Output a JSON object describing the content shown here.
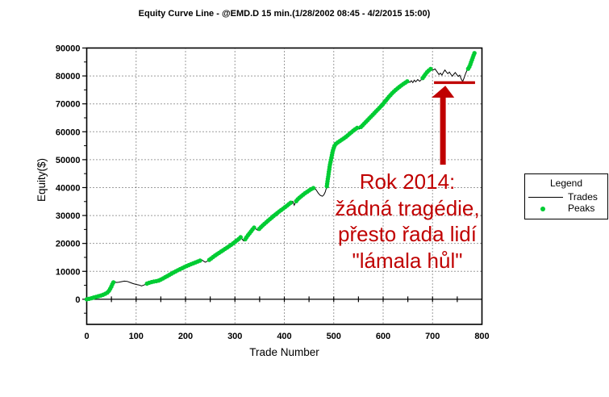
{
  "title": "Equity Curve Line - @EMD.D 15 min.(1/28/2002 08:45 - 4/2/2015 15:00)",
  "colors": {
    "peaks_green": "#00CC33",
    "trades_black": "#000000",
    "annotation_red": "#C00000",
    "grid_dot": "#3a3a3a",
    "background": "#FFFFFF"
  },
  "axes": {
    "x_title": "Trade Number",
    "y_title": "Equity($)"
  },
  "legend": {
    "title": "Legend",
    "items": [
      {
        "label": "Trades",
        "type": "line",
        "color": "#000000"
      },
      {
        "label": "Peaks",
        "type": "dot",
        "color": "#00CC33"
      }
    ]
  },
  "annotation": {
    "lines": [
      "Rok 2014:",
      "žádná tragédie,",
      "přesto řada lidí",
      "\"lámala hůl\""
    ],
    "color": "#C00000"
  },
  "chart_data": {
    "type": "line",
    "title": "Equity Curve Line - @EMD.D 15 min.(1/28/2002 08:45 - 4/2/2015 15:00)",
    "xlabel": "Trade Number",
    "ylabel": "Equity($)",
    "xlim": [
      0,
      800
    ],
    "ylim": [
      -9000,
      90000
    ],
    "x_ticks": [
      0,
      100,
      200,
      300,
      400,
      500,
      600,
      700,
      800
    ],
    "y_ticks": [
      0,
      10000,
      20000,
      30000,
      40000,
      50000,
      60000,
      70000,
      80000,
      90000
    ],
    "x_minor_step": 50,
    "y_minor_step": 5000,
    "grid": "dotted",
    "legend_position": "right",
    "series": [
      {
        "name": "Trades",
        "color": "#000000",
        "style": "line",
        "points": [
          [
            0,
            0
          ],
          [
            6,
            200
          ],
          [
            12,
            500
          ],
          [
            18,
            800
          ],
          [
            24,
            1100
          ],
          [
            30,
            1400
          ],
          [
            36,
            1800
          ],
          [
            42,
            2400
          ],
          [
            46,
            3200
          ],
          [
            50,
            4600
          ],
          [
            53,
            5900
          ],
          [
            56,
            6400
          ],
          [
            60,
            6000
          ],
          [
            65,
            6100
          ],
          [
            70,
            6300
          ],
          [
            76,
            6500
          ],
          [
            82,
            6400
          ],
          [
            88,
            6000
          ],
          [
            94,
            5600
          ],
          [
            100,
            5300
          ],
          [
            106,
            5100
          ],
          [
            111,
            4800
          ],
          [
            116,
            5100
          ],
          [
            122,
            5600
          ],
          [
            128,
            6000
          ],
          [
            135,
            6300
          ],
          [
            141,
            6500
          ],
          [
            146,
            6700
          ],
          [
            153,
            7300
          ],
          [
            160,
            8000
          ],
          [
            167,
            8700
          ],
          [
            174,
            9400
          ],
          [
            181,
            10100
          ],
          [
            188,
            10700
          ],
          [
            195,
            11300
          ],
          [
            202,
            11900
          ],
          [
            209,
            12400
          ],
          [
            216,
            12900
          ],
          [
            223,
            13400
          ],
          [
            229,
            13800
          ],
          [
            233,
            14100
          ],
          [
            237,
            13600
          ],
          [
            240,
            13300
          ],
          [
            244,
            13600
          ],
          [
            248,
            14100
          ],
          [
            254,
            14900
          ],
          [
            260,
            15700
          ],
          [
            266,
            16400
          ],
          [
            272,
            17100
          ],
          [
            278,
            17800
          ],
          [
            284,
            18500
          ],
          [
            290,
            19200
          ],
          [
            296,
            20000
          ],
          [
            302,
            20800
          ],
          [
            308,
            21600
          ],
          [
            312,
            22300
          ],
          [
            315,
            21400
          ],
          [
            318,
            20900
          ],
          [
            321,
            21500
          ],
          [
            325,
            22600
          ],
          [
            329,
            23500
          ],
          [
            333,
            24400
          ],
          [
            337,
            25300
          ],
          [
            340,
            25900
          ],
          [
            343,
            25100
          ],
          [
            346,
            24700
          ],
          [
            349,
            25200
          ],
          [
            353,
            25900
          ],
          [
            358,
            26700
          ],
          [
            363,
            27500
          ],
          [
            368,
            28300
          ],
          [
            373,
            29000
          ],
          [
            378,
            29800
          ],
          [
            383,
            30500
          ],
          [
            388,
            31200
          ],
          [
            393,
            31900
          ],
          [
            398,
            32500
          ],
          [
            403,
            33200
          ],
          [
            408,
            33900
          ],
          [
            413,
            34600
          ],
          [
            417,
            35100
          ],
          [
            420,
            33700
          ],
          [
            423,
            34900
          ],
          [
            427,
            35800
          ],
          [
            432,
            36600
          ],
          [
            437,
            37300
          ],
          [
            442,
            38000
          ],
          [
            447,
            38600
          ],
          [
            452,
            39200
          ],
          [
            457,
            39700
          ],
          [
            461,
            40000
          ],
          [
            465,
            39000
          ],
          [
            469,
            37900
          ],
          [
            473,
            37200
          ],
          [
            477,
            36900
          ],
          [
            480,
            37400
          ],
          [
            483,
            38500
          ],
          [
            486,
            40500
          ],
          [
            488,
            43000
          ],
          [
            490,
            45500
          ],
          [
            492,
            47800
          ],
          [
            495,
            50500
          ],
          [
            498,
            53000
          ],
          [
            501,
            54800
          ],
          [
            504,
            55600
          ],
          [
            509,
            56300
          ],
          [
            515,
            57000
          ],
          [
            521,
            57700
          ],
          [
            527,
            58500
          ],
          [
            533,
            59400
          ],
          [
            539,
            60300
          ],
          [
            545,
            61100
          ],
          [
            549,
            61600
          ],
          [
            552,
            61000
          ],
          [
            555,
            61700
          ],
          [
            560,
            62600
          ],
          [
            566,
            63700
          ],
          [
            572,
            64800
          ],
          [
            578,
            65900
          ],
          [
            584,
            67000
          ],
          [
            590,
            68100
          ],
          [
            596,
            69200
          ],
          [
            601,
            70200
          ],
          [
            606,
            71300
          ],
          [
            611,
            72400
          ],
          [
            616,
            73400
          ],
          [
            621,
            74300
          ],
          [
            627,
            75200
          ],
          [
            633,
            76100
          ],
          [
            639,
            76900
          ],
          [
            645,
            77600
          ],
          [
            650,
            78200
          ],
          [
            654,
            77700
          ],
          [
            657,
            78300
          ],
          [
            660,
            77600
          ],
          [
            663,
            78500
          ],
          [
            666,
            77900
          ],
          [
            670,
            78700
          ],
          [
            674,
            78100
          ],
          [
            678,
            78800
          ],
          [
            682,
            79700
          ],
          [
            686,
            80700
          ],
          [
            690,
            81600
          ],
          [
            694,
            82200
          ],
          [
            697,
            82600
          ],
          [
            701,
            82100
          ],
          [
            705,
            82500
          ],
          [
            709,
            81500
          ],
          [
            713,
            80500
          ],
          [
            716,
            81000
          ],
          [
            719,
            80300
          ],
          [
            722,
            81300
          ],
          [
            725,
            82100
          ],
          [
            728,
            81400
          ],
          [
            731,
            80800
          ],
          [
            734,
            81400
          ],
          [
            737,
            80600
          ],
          [
            740,
            79900
          ],
          [
            743,
            80600
          ],
          [
            746,
            81200
          ],
          [
            749,
            80500
          ],
          [
            752,
            79800
          ],
          [
            755,
            80300
          ],
          [
            758,
            78900
          ],
          [
            761,
            78000
          ],
          [
            764,
            79400
          ],
          [
            767,
            80900
          ],
          [
            770,
            82100
          ],
          [
            773,
            82800
          ],
          [
            776,
            83800
          ],
          [
            778,
            84900
          ],
          [
            780,
            85900
          ],
          [
            782,
            86900
          ],
          [
            784,
            87900
          ],
          [
            786,
            88600
          ]
        ]
      },
      {
        "name": "Peaks",
        "color": "#00CC33",
        "style": "dots",
        "trade_ranges": [
          [
            0,
            57
          ],
          [
            122,
            233
          ],
          [
            248,
            312
          ],
          [
            321,
            340
          ],
          [
            349,
            416
          ],
          [
            424,
            461
          ],
          [
            486,
            549
          ],
          [
            555,
            650
          ],
          [
            680,
            697
          ],
          [
            772,
            786
          ]
        ]
      }
    ],
    "annotations": {
      "level_line": {
        "trade_start": 703,
        "trade_end": 786,
        "equity": 77600
      },
      "arrow": {
        "at_trade": 721,
        "from_equity": 48200,
        "to_equity": 76500,
        "head_base_equity": 72500,
        "head_half_width_trades": 23
      },
      "text": {
        "lines": [
          "Rok 2014:",
          "žádná tragédie,",
          "přesto řada lidí",
          "\"lámala hůl\""
        ],
        "color": "#C00000"
      }
    }
  }
}
